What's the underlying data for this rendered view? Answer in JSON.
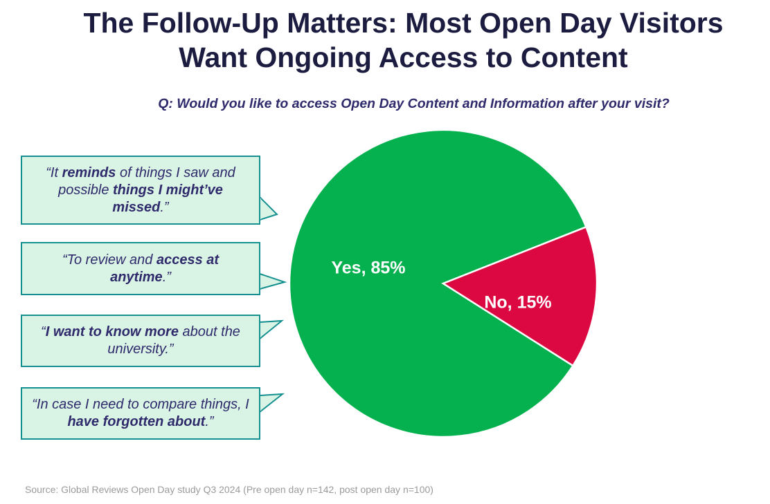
{
  "header": {
    "title_line1": "The Follow-Up Matters: Most Open Day Visitors",
    "title_line2": "Want Ongoing Access to Content",
    "question": "Q: Would you like to access Open Day Content and Information after your visit?"
  },
  "callouts": [
    {
      "parts": [
        {
          "t": "“It ",
          "b": false
        },
        {
          "t": "reminds",
          "b": true
        },
        {
          "t": " of things I saw and possible ",
          "b": false
        },
        {
          "t": "things I might’ve missed",
          "b": true
        },
        {
          "t": ".”",
          "b": false
        }
      ]
    },
    {
      "parts": [
        {
          "t": "“To review and ",
          "b": false
        },
        {
          "t": "access at anytime",
          "b": true
        },
        {
          "t": ".”",
          "b": false
        }
      ]
    },
    {
      "parts": [
        {
          "t": "“",
          "b": false
        },
        {
          "t": "I want to know more",
          "b": true
        },
        {
          "t": " about the university.”",
          "b": false
        }
      ]
    },
    {
      "parts": [
        {
          "t": "“In case I need to compare things, I ",
          "b": false
        },
        {
          "t": "have forgotten about",
          "b": true
        },
        {
          "t": ".”",
          "b": false
        }
      ]
    }
  ],
  "chart_data": {
    "type": "pie",
    "title": "Q: Would you like to access Open Day Content and Information after your visit?",
    "slices": [
      {
        "label": "Yes",
        "value": 85,
        "display": "Yes, 85%",
        "color": "#04b14e"
      },
      {
        "label": "No",
        "value": 15,
        "display": "No, 15%",
        "color": "#dc0841"
      }
    ]
  },
  "colors": {
    "title": "#1b1c3f",
    "question": "#2e2a6b",
    "callout_fill": "#d9f3e4",
    "callout_border": "#13908f"
  },
  "footer": {
    "source": "Source: Global Reviews Open Day study Q3 2024 (Pre open day n=142, post open day n=100)"
  }
}
